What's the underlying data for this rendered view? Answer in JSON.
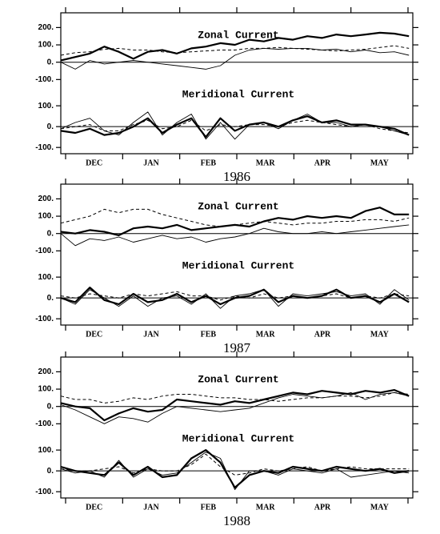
{
  "chart_data": [
    {
      "type": "line",
      "title": "Zonal Current",
      "zero_line": true,
      "xlim": [
        0,
        182
      ],
      "ylim": [
        -140,
        285
      ],
      "yticks": [
        {
          "value": -100,
          "label": "-100."
        },
        {
          "value": 0,
          "label": "0."
        },
        {
          "value": 100,
          "label": "100."
        },
        {
          "value": 200,
          "label": "200."
        }
      ],
      "x": [
        0,
        7.5,
        15,
        22.5,
        30,
        37.5,
        45,
        52.5,
        60,
        67.5,
        75,
        82.5,
        90,
        97.5,
        105,
        112.5,
        120,
        127.5,
        135,
        142.5,
        150,
        157.5,
        165,
        172.5,
        180
      ],
      "series": [
        {
          "style": "thick",
          "color": "#000000",
          "values": [
            10,
            30,
            50,
            90,
            60,
            20,
            60,
            70,
            50,
            80,
            90,
            110,
            100,
            130,
            120,
            140,
            130,
            150,
            140,
            160,
            150,
            160,
            170,
            165,
            150
          ]
        },
        {
          "style": "thin",
          "color": "#000000",
          "values": [
            0,
            -40,
            10,
            -10,
            0,
            10,
            0,
            -10,
            -20,
            -30,
            -40,
            -20,
            40,
            70,
            80,
            75,
            80,
            80,
            70,
            75,
            60,
            70,
            55,
            60,
            40
          ]
        },
        {
          "style": "dashed",
          "color": "#000000",
          "values": [
            40,
            55,
            60,
            75,
            80,
            70,
            70,
            60,
            55,
            60,
            65,
            70,
            70,
            80,
            80,
            85,
            80,
            75,
            70,
            65,
            70,
            75,
            85,
            95,
            80
          ]
        }
      ]
    },
    {
      "type": "line",
      "title": "Meridional Current",
      "zero_line": true,
      "xlim": [
        0,
        182
      ],
      "ylim": [
        -130,
        185
      ],
      "yticks": [
        {
          "value": -100,
          "label": "-100."
        },
        {
          "value": 0,
          "label": "0."
        },
        {
          "value": 100,
          "label": "100."
        }
      ],
      "months": [
        "DEC",
        "JAN",
        "FEB",
        "MAR",
        "APR",
        "MAY"
      ],
      "xlabel": "1986",
      "x": [
        0,
        7.5,
        15,
        22.5,
        30,
        37.5,
        45,
        52.5,
        60,
        67.5,
        75,
        82.5,
        90,
        97.5,
        105,
        112.5,
        120,
        127.5,
        135,
        142.5,
        150,
        157.5,
        165,
        172.5,
        180
      ],
      "series": [
        {
          "style": "thick",
          "color": "#000000",
          "values": [
            -20,
            -30,
            -10,
            -40,
            -30,
            0,
            40,
            -30,
            10,
            40,
            -50,
            40,
            -20,
            10,
            20,
            0,
            30,
            50,
            20,
            30,
            10,
            10,
            0,
            -10,
            -40
          ]
        },
        {
          "style": "thin",
          "color": "#000000",
          "values": [
            -10,
            20,
            40,
            -20,
            -40,
            20,
            70,
            -40,
            20,
            60,
            -60,
            20,
            -60,
            10,
            20,
            -10,
            30,
            60,
            20,
            20,
            0,
            10,
            0,
            -20,
            -40
          ]
        },
        {
          "style": "dashed",
          "color": "#000000",
          "values": [
            -10,
            0,
            10,
            -20,
            -20,
            10,
            30,
            -10,
            0,
            30,
            -20,
            10,
            0,
            10,
            10,
            0,
            20,
            30,
            20,
            10,
            0,
            10,
            -10,
            -20,
            -30
          ]
        }
      ]
    },
    {
      "type": "line",
      "title": "Zonal Current",
      "zero_line": true,
      "xlim": [
        0,
        182
      ],
      "ylim": [
        -140,
        285
      ],
      "yticks": [
        {
          "value": -100,
          "label": "-100."
        },
        {
          "value": 0,
          "label": "0."
        },
        {
          "value": 100,
          "label": "100."
        },
        {
          "value": 200,
          "label": "200."
        }
      ],
      "x": [
        0,
        7.5,
        15,
        22.5,
        30,
        37.5,
        45,
        52.5,
        60,
        67.5,
        75,
        82.5,
        90,
        97.5,
        105,
        112.5,
        120,
        127.5,
        135,
        142.5,
        150,
        157.5,
        165,
        172.5,
        180
      ],
      "series": [
        {
          "style": "thick",
          "color": "#000000",
          "values": [
            10,
            0,
            20,
            10,
            -10,
            30,
            40,
            30,
            50,
            20,
            30,
            40,
            50,
            40,
            70,
            90,
            80,
            100,
            90,
            100,
            90,
            130,
            150,
            110,
            110
          ]
        },
        {
          "style": "thin",
          "color": "#000000",
          "values": [
            0,
            -70,
            -30,
            -40,
            -20,
            -50,
            -30,
            -10,
            -30,
            -20,
            -50,
            -30,
            -20,
            0,
            30,
            10,
            0,
            0,
            10,
            0,
            10,
            20,
            30,
            40,
            50
          ]
        },
        {
          "style": "dashed",
          "color": "#000000",
          "values": [
            60,
            80,
            100,
            140,
            120,
            140,
            140,
            110,
            90,
            70,
            50,
            40,
            50,
            60,
            70,
            60,
            50,
            60,
            60,
            70,
            70,
            80,
            80,
            70,
            90
          ]
        }
      ]
    },
    {
      "type": "line",
      "title": "Meridional Current",
      "zero_line": true,
      "xlim": [
        0,
        182
      ],
      "ylim": [
        -130,
        185
      ],
      "yticks": [
        {
          "value": -100,
          "label": "-100."
        },
        {
          "value": 0,
          "label": "0."
        },
        {
          "value": 100,
          "label": "100."
        }
      ],
      "months": [
        "DEC",
        "JAN",
        "FEB",
        "MAR",
        "APR",
        "MAY"
      ],
      "xlabel": "1987",
      "x": [
        0,
        7.5,
        15,
        22.5,
        30,
        37.5,
        45,
        52.5,
        60,
        67.5,
        75,
        82.5,
        90,
        97.5,
        105,
        112.5,
        120,
        127.5,
        135,
        142.5,
        150,
        157.5,
        165,
        172.5,
        180
      ],
      "series": [
        {
          "style": "thick",
          "color": "#000000",
          "values": [
            0,
            -20,
            50,
            -10,
            -30,
            20,
            -20,
            -10,
            20,
            -20,
            10,
            -30,
            0,
            10,
            40,
            -20,
            10,
            0,
            10,
            40,
            0,
            10,
            -20,
            20,
            -20
          ]
        },
        {
          "style": "thin",
          "color": "#000000",
          "values": [
            0,
            -30,
            40,
            0,
            -40,
            10,
            -40,
            0,
            10,
            -30,
            20,
            -50,
            10,
            20,
            40,
            -40,
            20,
            10,
            20,
            30,
            10,
            20,
            -30,
            40,
            -10
          ]
        },
        {
          "style": "dashed",
          "color": "#000000",
          "values": [
            10,
            0,
            20,
            10,
            0,
            20,
            10,
            20,
            30,
            10,
            10,
            -10,
            10,
            0,
            20,
            0,
            10,
            0,
            10,
            20,
            0,
            10,
            0,
            20,
            10
          ]
        }
      ]
    },
    {
      "type": "line",
      "title": "Zonal Current",
      "zero_line": true,
      "xlim": [
        0,
        182
      ],
      "ylim": [
        -140,
        285
      ],
      "yticks": [
        {
          "value": -100,
          "label": "-100."
        },
        {
          "value": 0,
          "label": "0."
        },
        {
          "value": 100,
          "label": "100."
        },
        {
          "value": 200,
          "label": "200."
        }
      ],
      "x": [
        0,
        7.5,
        15,
        22.5,
        30,
        37.5,
        45,
        52.5,
        60,
        67.5,
        75,
        82.5,
        90,
        97.5,
        105,
        112.5,
        120,
        127.5,
        135,
        142.5,
        150,
        157.5,
        165,
        172.5,
        180
      ],
      "series": [
        {
          "style": "thick",
          "color": "#000000",
          "values": [
            20,
            0,
            -10,
            -80,
            -40,
            -10,
            -30,
            -20,
            40,
            30,
            20,
            10,
            30,
            20,
            40,
            60,
            80,
            70,
            90,
            80,
            70,
            90,
            80,
            95,
            60
          ]
        },
        {
          "style": "thin",
          "color": "#000000",
          "values": [
            10,
            -20,
            -60,
            -100,
            -60,
            -70,
            -90,
            -40,
            0,
            -10,
            -20,
            -30,
            -20,
            -10,
            20,
            50,
            70,
            60,
            50,
            60,
            80,
            40,
            70,
            80,
            60
          ]
        },
        {
          "style": "dashed",
          "color": "#000000",
          "values": [
            60,
            40,
            40,
            20,
            30,
            50,
            40,
            60,
            70,
            70,
            60,
            50,
            50,
            40,
            40,
            30,
            40,
            50,
            50,
            60,
            60,
            50,
            60,
            80,
            70
          ]
        }
      ]
    },
    {
      "type": "line",
      "title": "Meridional Current",
      "zero_line": true,
      "xlim": [
        0,
        182
      ],
      "ylim": [
        -130,
        185
      ],
      "yticks": [
        {
          "value": -100,
          "label": "-100."
        },
        {
          "value": 0,
          "label": "0."
        },
        {
          "value": 100,
          "label": "100."
        }
      ],
      "months": [
        "DEC",
        "JAN",
        "FEB",
        "MAR",
        "APR",
        "MAY"
      ],
      "xlabel": "1988",
      "x": [
        0,
        7.5,
        15,
        22.5,
        30,
        37.5,
        45,
        52.5,
        60,
        67.5,
        75,
        82.5,
        90,
        97.5,
        105,
        112.5,
        120,
        127.5,
        135,
        142.5,
        150,
        157.5,
        165,
        172.5,
        180
      ],
      "series": [
        {
          "style": "thick",
          "color": "#000000",
          "values": [
            20,
            0,
            -10,
            -20,
            40,
            -20,
            20,
            -30,
            -20,
            60,
            100,
            40,
            -80,
            -20,
            0,
            -10,
            20,
            10,
            0,
            20,
            10,
            0,
            10,
            -10,
            0
          ]
        },
        {
          "style": "thin",
          "color": "#000000",
          "values": [
            10,
            -10,
            0,
            -30,
            50,
            -30,
            10,
            -20,
            -10,
            40,
            90,
            60,
            -90,
            0,
            0,
            -20,
            10,
            0,
            -10,
            10,
            -30,
            -20,
            -10,
            0,
            -10
          ]
        },
        {
          "style": "dashed",
          "color": "#000000",
          "values": [
            10,
            0,
            0,
            10,
            20,
            -10,
            10,
            0,
            0,
            30,
            80,
            20,
            -20,
            -10,
            10,
            0,
            10,
            20,
            0,
            10,
            20,
            10,
            10,
            10,
            10
          ]
        }
      ]
    }
  ]
}
